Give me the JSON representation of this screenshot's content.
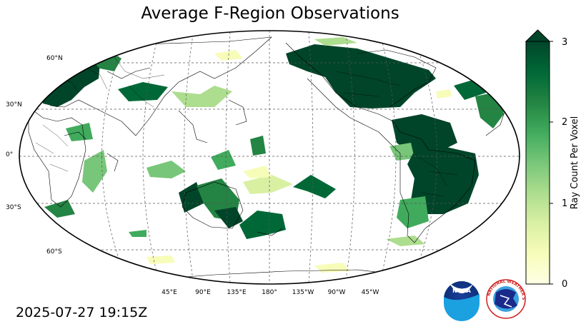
{
  "title": "Average F-Region Observations",
  "timestamp": "2025-07-27 19:15Z",
  "map": {
    "projection": "robinson",
    "central_longitude": 180,
    "gridlines": "dashed",
    "lat_labels": [
      "60°N",
      "30°N",
      "0°",
      "30°S",
      "60°S"
    ],
    "lon_labels": [
      "45°E",
      "90°E",
      "135°E",
      "180°",
      "135°W",
      "90°W",
      "45°W"
    ]
  },
  "colorbar": {
    "label": "Ray Count Per Voxel",
    "ticks": [
      "0",
      "1",
      "2",
      "3"
    ],
    "range": [
      0,
      3
    ],
    "extend": "max",
    "colormap": "YlGn",
    "colors": [
      "#ffffe5",
      "#f7fcb9",
      "#d9f0a3",
      "#addd8e",
      "#78c679",
      "#41ab5d",
      "#238443",
      "#006837",
      "#004529"
    ]
  },
  "logos": {
    "noaa": "NOAA",
    "nws": "NATIONAL WEATHER SERVICE"
  }
}
